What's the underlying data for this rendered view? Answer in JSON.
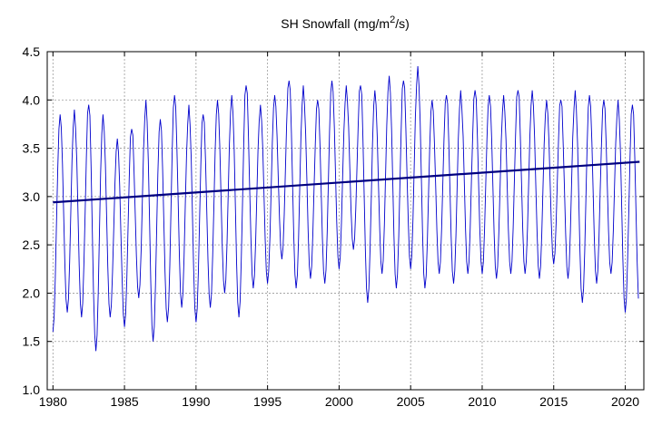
{
  "chart_data": {
    "type": "line",
    "title": "SH Snowfall (mg/m",
    "title_superscript": "2",
    "title_suffix": "/s)",
    "xlabel": "",
    "ylabel": "",
    "xlim": [
      1979.6,
      2021.3
    ],
    "ylim": [
      1.0,
      4.5
    ],
    "xticks": [
      1980,
      1985,
      1990,
      1995,
      2000,
      2005,
      2010,
      2015,
      2020
    ],
    "yticks": [
      1.0,
      1.5,
      2.0,
      2.5,
      3.0,
      3.5,
      4.0,
      4.5
    ],
    "ytick_labels": [
      "1.0",
      "1.5",
      "2.0",
      "2.5",
      "3.0",
      "3.5",
      "4.0",
      "4.5"
    ],
    "grid": true,
    "series": [
      {
        "color": "#0000cc",
        "style": "monthly seasonal cycle",
        "annual_maxima": [
          3.85,
          3.9,
          3.95,
          3.85,
          3.6,
          3.7,
          4.0,
          3.8,
          4.05,
          3.95,
          3.85,
          4.0,
          4.05,
          4.15,
          3.95,
          4.05,
          4.2,
          4.15,
          4.0,
          4.2,
          4.15,
          4.15,
          4.1,
          4.25,
          4.2,
          4.35,
          4.0,
          4.05,
          4.1,
          4.1,
          4.05,
          4.05,
          4.1,
          4.1,
          4.0,
          4.0,
          4.1,
          4.05,
          4.0,
          4.0,
          3.95
        ],
        "annual_minima": [
          1.6,
          1.8,
          1.75,
          1.4,
          1.75,
          1.65,
          1.95,
          1.5,
          1.7,
          1.85,
          1.7,
          1.85,
          2.0,
          1.75,
          2.05,
          2.1,
          2.35,
          2.05,
          2.15,
          2.1,
          2.25,
          2.45,
          1.9,
          2.2,
          2.05,
          2.25,
          2.05,
          2.2,
          2.1,
          2.2,
          2.2,
          2.15,
          2.2,
          2.2,
          2.15,
          2.3,
          2.15,
          1.9,
          2.1,
          2.2,
          1.8
        ]
      },
      {
        "color": "#000080",
        "style": "linear trend",
        "x": [
          1980.0,
          2021.0
        ],
        "y": [
          2.94,
          3.36
        ]
      }
    ]
  }
}
